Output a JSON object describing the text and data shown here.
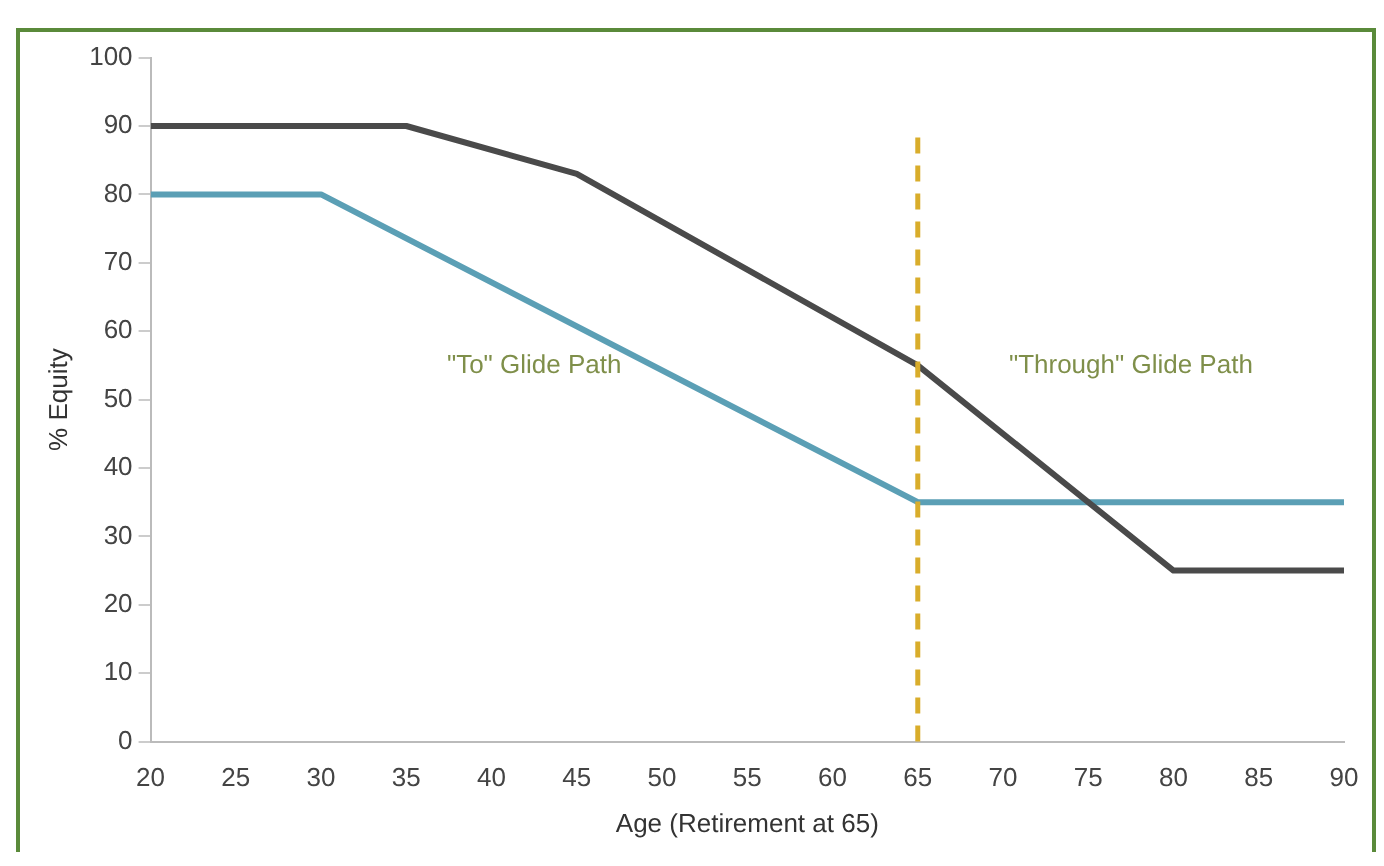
{
  "chart_data": {
    "type": "line",
    "xlabel": "Age (Retirement at 65)",
    "ylabel": "% Equity",
    "xlim": [
      20,
      90
    ],
    "xticks": [
      20,
      25,
      30,
      35,
      40,
      45,
      50,
      55,
      60,
      65,
      70,
      75,
      80,
      85,
      90
    ],
    "ylim": [
      0,
      100
    ],
    "yticks": [
      0,
      10,
      20,
      30,
      40,
      50,
      60,
      70,
      80,
      90,
      100
    ],
    "series": [
      {
        "color": "#4a4a4a",
        "x": [
          20,
          35,
          45,
          65,
          80,
          90
        ],
        "values": [
          90,
          90,
          83,
          55,
          25,
          25
        ]
      },
      {
        "color": "#5b9fb5",
        "x": [
          20,
          30,
          65,
          90
        ],
        "values": [
          80,
          80,
          35,
          35
        ]
      }
    ],
    "ref_lines": [
      {
        "axis": "x",
        "value": 65,
        "color": "#d9ad2b",
        "line_style": "dashed"
      }
    ],
    "annotations": [
      "\"To\" Glide Path",
      "\"Through\" Glide Path"
    ],
    "grid": false,
    "legend": false,
    "marker": "none",
    "line_style": "solid"
  }
}
